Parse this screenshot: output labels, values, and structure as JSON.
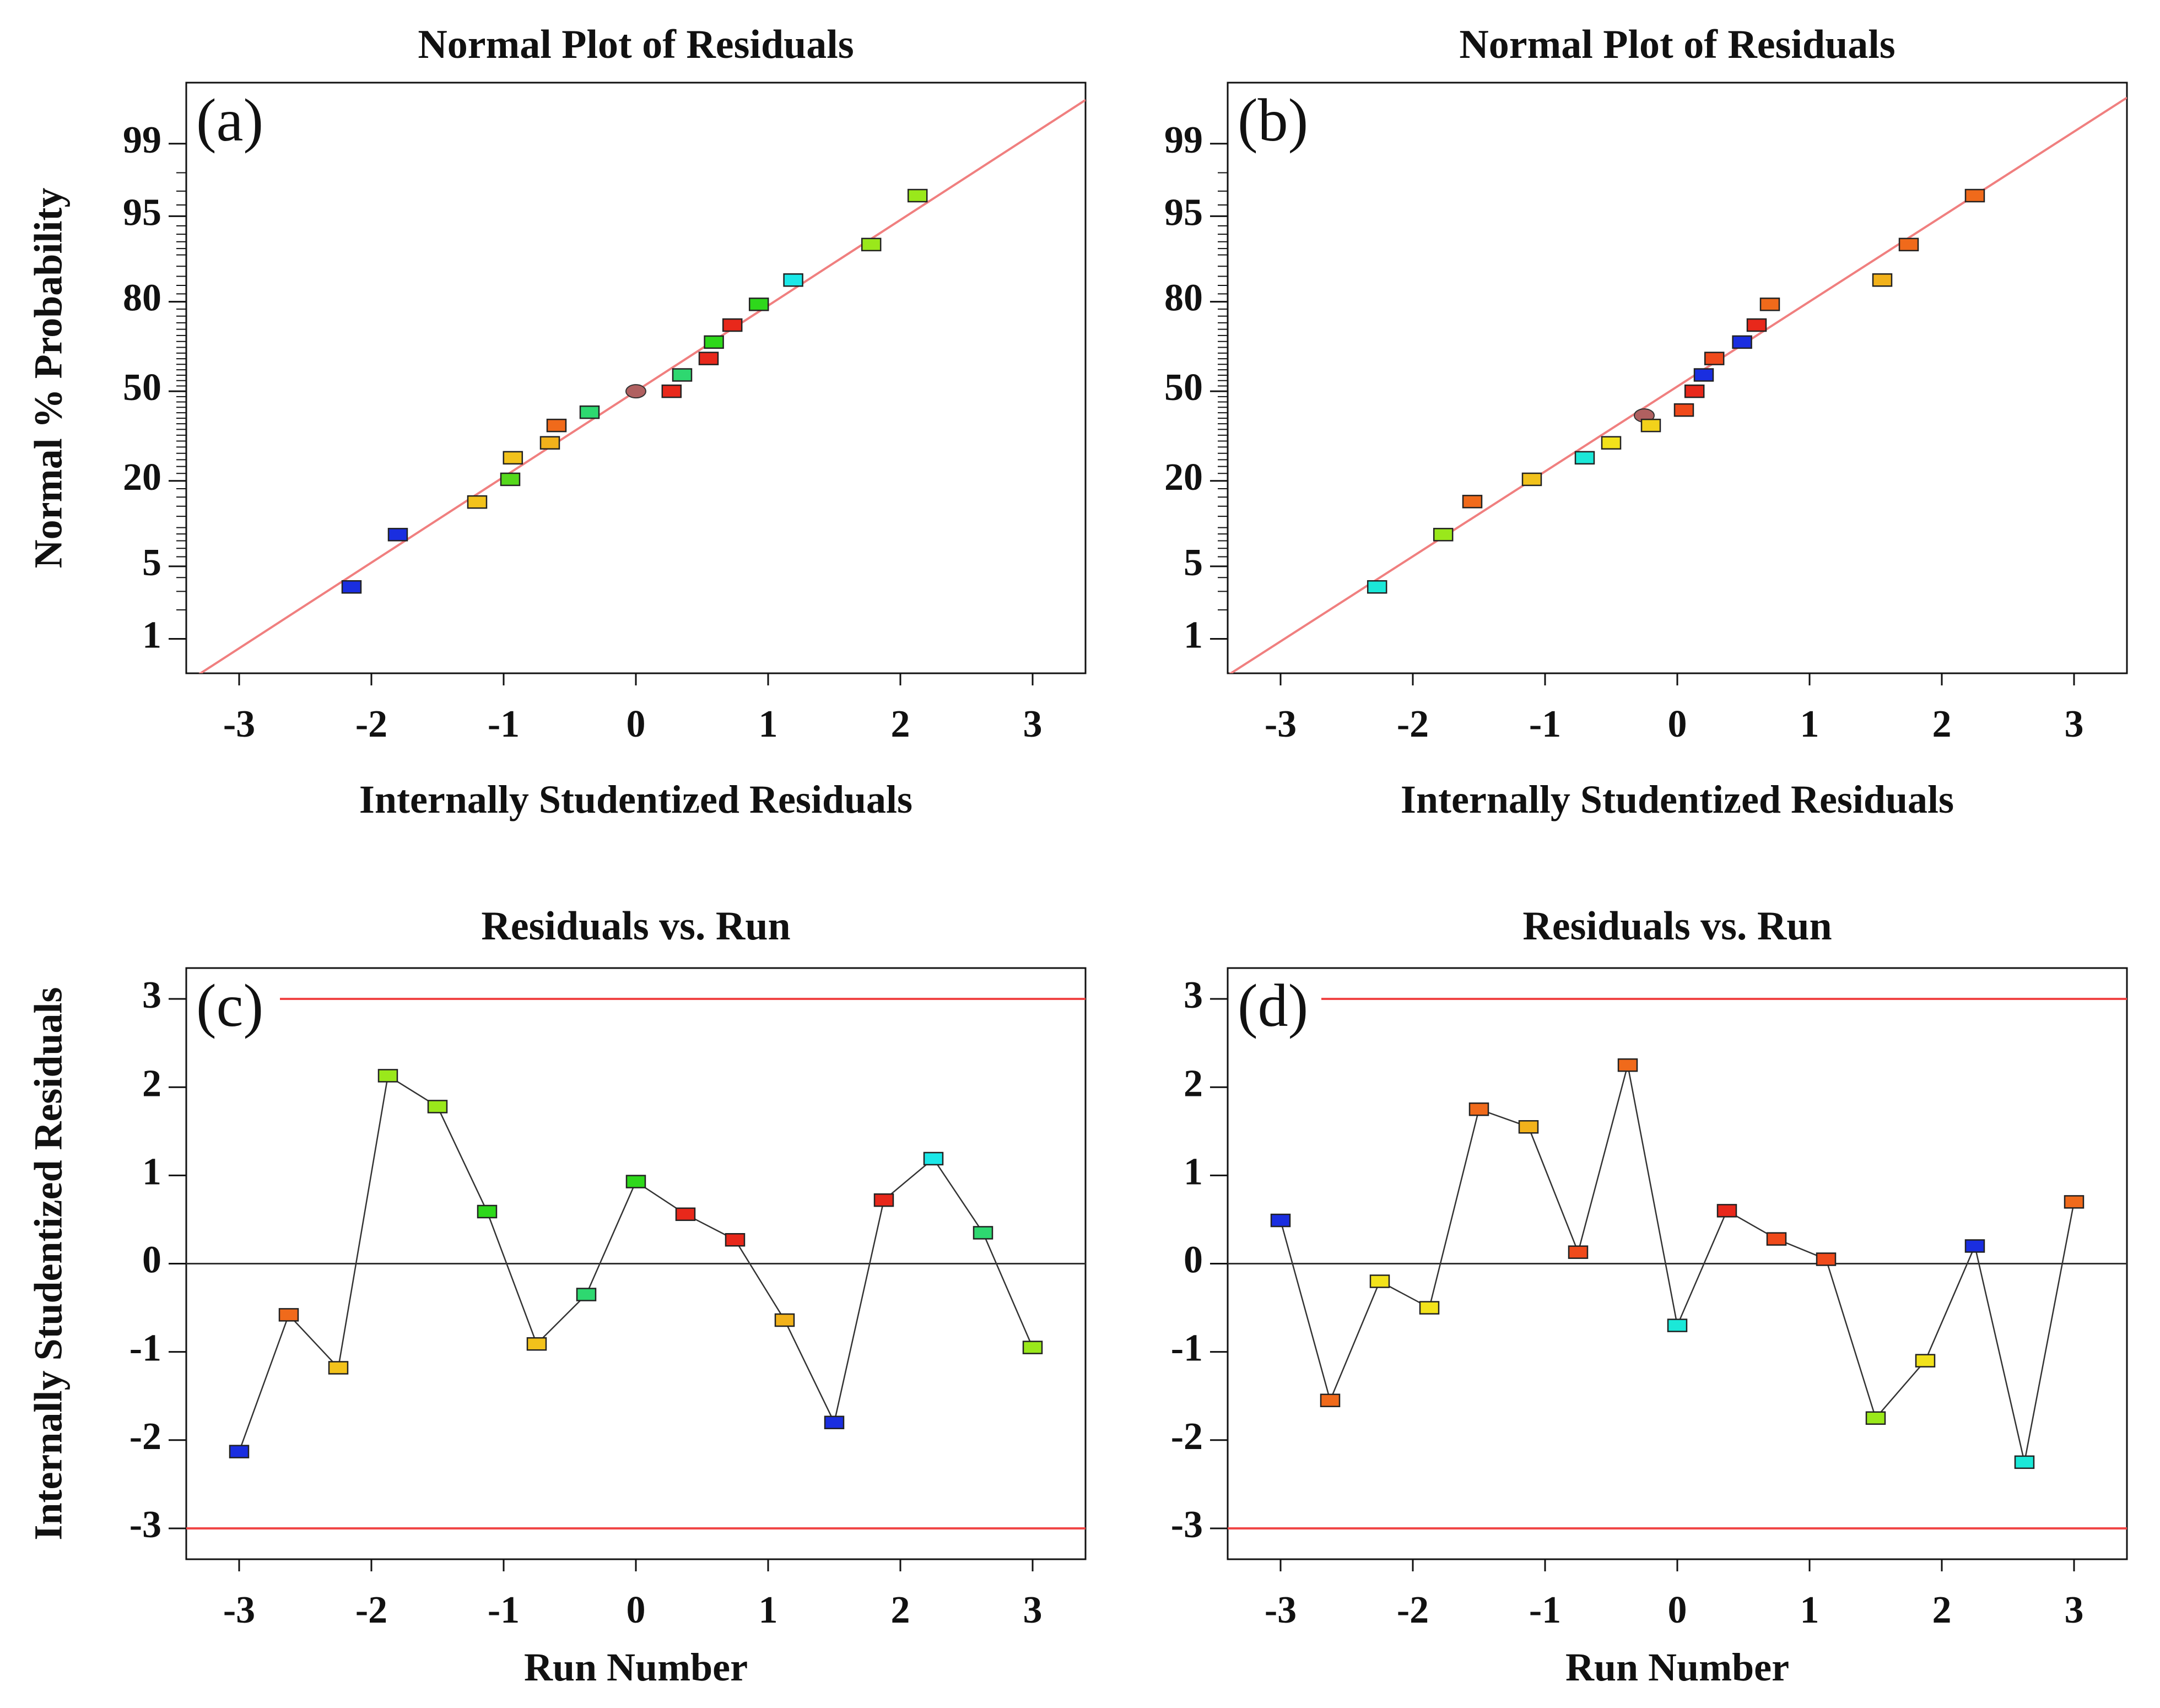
{
  "colors": {
    "line": "#f07f7f",
    "limit": "#f04545",
    "zero": "#333333",
    "connector": "#333333",
    "frame": "#111111",
    "median_marker": "#b06060"
  },
  "chart_data": [
    {
      "type": "scatter",
      "id": "a",
      "panel_label": "(a)",
      "title": "Normal Plot of Residuals",
      "xlabel": "Internally Studentized Residuals",
      "ylabel": "Normal % Probability",
      "xlim": [
        -3.4,
        3.4
      ],
      "xticks": [
        -3,
        -2,
        -1,
        0,
        1,
        2,
        3
      ],
      "xtick_labels": [
        "-3",
        "-2",
        "-1",
        "0",
        "1",
        "2",
        "3"
      ],
      "yticks": [
        1,
        5,
        20,
        50,
        80,
        95,
        99
      ],
      "ytick_labels": [
        "1",
        "5",
        "20",
        "50",
        "80",
        "95",
        "99"
      ],
      "reference_line": [
        [
          -3.4,
          0.31
        ],
        [
          3.4,
          99.69
        ]
      ],
      "median_point": [
        0.0,
        50
      ],
      "points": [
        {
          "x": -2.15,
          "y": 3.3,
          "color": "#1a2ee0"
        },
        {
          "x": -1.8,
          "y": 8.9,
          "color": "#1a2ee0"
        },
        {
          "x": -1.2,
          "y": 14.9,
          "color": "#f2c21b"
        },
        {
          "x": -0.95,
          "y": 20.4,
          "color": "#55d81b"
        },
        {
          "x": -0.93,
          "y": 26.6,
          "color": "#f2c21b"
        },
        {
          "x": -0.65,
          "y": 31.4,
          "color": "#f2b21b"
        },
        {
          "x": -0.6,
          "y": 37.4,
          "color": "#f06a1b"
        },
        {
          "x": -0.35,
          "y": 42.2,
          "color": "#2ed870"
        },
        {
          "x": 0.27,
          "y": 50.0,
          "color": "#e8281b"
        },
        {
          "x": 0.35,
          "y": 56.1,
          "color": "#2ed870"
        },
        {
          "x": 0.55,
          "y": 62.1,
          "color": "#e8281b"
        },
        {
          "x": 0.59,
          "y": 67.8,
          "color": "#2ed81b"
        },
        {
          "x": 0.73,
          "y": 73.3,
          "color": "#e8281b"
        },
        {
          "x": 0.93,
          "y": 79.3,
          "color": "#2ed81b"
        },
        {
          "x": 1.19,
          "y": 85.2,
          "color": "#1be8e8"
        },
        {
          "x": 1.78,
          "y": 91.6,
          "color": "#9ae81b"
        },
        {
          "x": 2.13,
          "y": 96.7,
          "color": "#9ae81b"
        }
      ]
    },
    {
      "type": "scatter",
      "id": "b",
      "panel_label": "(b)",
      "title": "Normal Plot of Residuals",
      "xlabel": "Internally Studentized Residuals",
      "ylabel": "",
      "xlim": [
        -3.4,
        3.4
      ],
      "xticks": [
        -3,
        -2,
        -1,
        0,
        1,
        2,
        3
      ],
      "xtick_labels": [
        "-3",
        "-2",
        "-1",
        "0",
        "1",
        "2",
        "3"
      ],
      "yticks": [
        1,
        5,
        20,
        50,
        80,
        95,
        99
      ],
      "ytick_labels": [
        "1",
        "5",
        "20",
        "50",
        "80",
        "95",
        "99"
      ],
      "reference_line": [
        [
          -3.4,
          0.38
        ],
        [
          3.4,
          99.71
        ]
      ],
      "median_point": [
        -0.25,
        41
      ],
      "points": [
        {
          "x": -2.27,
          "y": 3.3,
          "color": "#1be8d8"
        },
        {
          "x": -1.77,
          "y": 8.9,
          "color": "#9ae81b"
        },
        {
          "x": -1.55,
          "y": 15.0,
          "color": "#f06a1b"
        },
        {
          "x": -1.1,
          "y": 20.4,
          "color": "#f2c21b"
        },
        {
          "x": -0.7,
          "y": 26.6,
          "color": "#1be8d8"
        },
        {
          "x": -0.5,
          "y": 31.4,
          "color": "#f2e21b"
        },
        {
          "x": -0.2,
          "y": 37.4,
          "color": "#f2d21b"
        },
        {
          "x": 0.05,
          "y": 43.0,
          "color": "#f04a1b"
        },
        {
          "x": 0.13,
          "y": 50.0,
          "color": "#e8281b"
        },
        {
          "x": 0.2,
          "y": 56.1,
          "color": "#1a2ee0"
        },
        {
          "x": 0.28,
          "y": 62.1,
          "color": "#f04a1b"
        },
        {
          "x": 0.49,
          "y": 67.8,
          "color": "#1a2ee0"
        },
        {
          "x": 0.6,
          "y": 73.3,
          "color": "#e8281b"
        },
        {
          "x": 0.7,
          "y": 79.3,
          "color": "#f06a1b"
        },
        {
          "x": 1.55,
          "y": 85.2,
          "color": "#f2b21b"
        },
        {
          "x": 1.75,
          "y": 91.6,
          "color": "#f06a1b"
        },
        {
          "x": 2.25,
          "y": 96.7,
          "color": "#f06a1b"
        }
      ]
    },
    {
      "type": "line",
      "id": "c",
      "panel_label": "(c)",
      "title": "Residuals vs. Run",
      "xlabel": "Run Number",
      "ylabel": "Internally Studentized Residuals",
      "xlim": [
        -3.4,
        3.4
      ],
      "ylim": [
        -3.35,
        3.35
      ],
      "xticks": [
        -3,
        -2,
        -1,
        0,
        1,
        2,
        3
      ],
      "xtick_labels": [
        "-3",
        "-2",
        "-1",
        "0",
        "1",
        "2",
        "3"
      ],
      "yticks": [
        -3,
        -2,
        -1,
        0,
        1,
        2,
        3
      ],
      "ytick_labels": [
        "-3",
        "-2",
        "-1",
        "0",
        "1",
        "2",
        "3"
      ],
      "limit_lines": [
        -3,
        3
      ],
      "points": [
        {
          "x": -3.0,
          "y": -2.13,
          "color": "#1a2ee0"
        },
        {
          "x": -2.625,
          "y": -0.58,
          "color": "#f06a1b"
        },
        {
          "x": -2.25,
          "y": -1.18,
          "color": "#f2c21b"
        },
        {
          "x": -1.875,
          "y": 2.13,
          "color": "#9ae81b"
        },
        {
          "x": -1.5,
          "y": 1.78,
          "color": "#9ae81b"
        },
        {
          "x": -1.125,
          "y": 0.59,
          "color": "#2ed81b"
        },
        {
          "x": -0.75,
          "y": -0.91,
          "color": "#f2c21b"
        },
        {
          "x": -0.375,
          "y": -0.35,
          "color": "#2ed870"
        },
        {
          "x": 0.0,
          "y": 0.93,
          "color": "#2ed81b"
        },
        {
          "x": 0.375,
          "y": 0.56,
          "color": "#e8281b"
        },
        {
          "x": 0.75,
          "y": 0.27,
          "color": "#e8281b"
        },
        {
          "x": 1.125,
          "y": -0.64,
          "color": "#f2b21b"
        },
        {
          "x": 1.5,
          "y": -1.8,
          "color": "#1a2ee0"
        },
        {
          "x": 1.875,
          "y": 0.72,
          "color": "#e8281b"
        },
        {
          "x": 2.25,
          "y": 1.19,
          "color": "#1be8e8"
        },
        {
          "x": 2.625,
          "y": 0.35,
          "color": "#2ed870"
        },
        {
          "x": 3.0,
          "y": -0.95,
          "color": "#9ae81b"
        }
      ]
    },
    {
      "type": "line",
      "id": "d",
      "panel_label": "(d)",
      "title": "Residuals vs. Run",
      "xlabel": "Run Number",
      "ylabel": "",
      "xlim": [
        -3.4,
        3.4
      ],
      "ylim": [
        -3.35,
        3.35
      ],
      "xticks": [
        -3,
        -2,
        -1,
        0,
        1,
        2,
        3
      ],
      "xtick_labels": [
        "-3",
        "-2",
        "-1",
        "0",
        "1",
        "2",
        "3"
      ],
      "yticks": [
        -3,
        -2,
        -1,
        0,
        1,
        2,
        3
      ],
      "ytick_labels": [
        "-3",
        "-2",
        "-1",
        "0",
        "1",
        "2",
        "3"
      ],
      "limit_lines": [
        -3,
        3
      ],
      "points": [
        {
          "x": -3.0,
          "y": 0.49,
          "color": "#1a2ee0"
        },
        {
          "x": -2.625,
          "y": -1.55,
          "color": "#f06a1b"
        },
        {
          "x": -2.25,
          "y": -0.2,
          "color": "#f2e21b"
        },
        {
          "x": -1.875,
          "y": -0.5,
          "color": "#f2e21b"
        },
        {
          "x": -1.5,
          "y": 1.75,
          "color": "#f06a1b"
        },
        {
          "x": -1.125,
          "y": 1.55,
          "color": "#f2b21b"
        },
        {
          "x": -0.75,
          "y": 0.13,
          "color": "#f04a1b"
        },
        {
          "x": -0.375,
          "y": 2.25,
          "color": "#f06a1b"
        },
        {
          "x": 0.0,
          "y": -0.7,
          "color": "#1be8d8"
        },
        {
          "x": 0.375,
          "y": 0.6,
          "color": "#e8281b"
        },
        {
          "x": 0.75,
          "y": 0.28,
          "color": "#f04a1b"
        },
        {
          "x": 1.125,
          "y": 0.05,
          "color": "#f04a1b"
        },
        {
          "x": 1.5,
          "y": -1.75,
          "color": "#9ae81b"
        },
        {
          "x": 1.875,
          "y": -1.1,
          "color": "#f2e21b"
        },
        {
          "x": 2.25,
          "y": 0.2,
          "color": "#1a2ee0"
        },
        {
          "x": 2.625,
          "y": -2.25,
          "color": "#1be8d8"
        },
        {
          "x": 3.0,
          "y": 0.7,
          "color": "#f06a1b"
        }
      ]
    }
  ]
}
